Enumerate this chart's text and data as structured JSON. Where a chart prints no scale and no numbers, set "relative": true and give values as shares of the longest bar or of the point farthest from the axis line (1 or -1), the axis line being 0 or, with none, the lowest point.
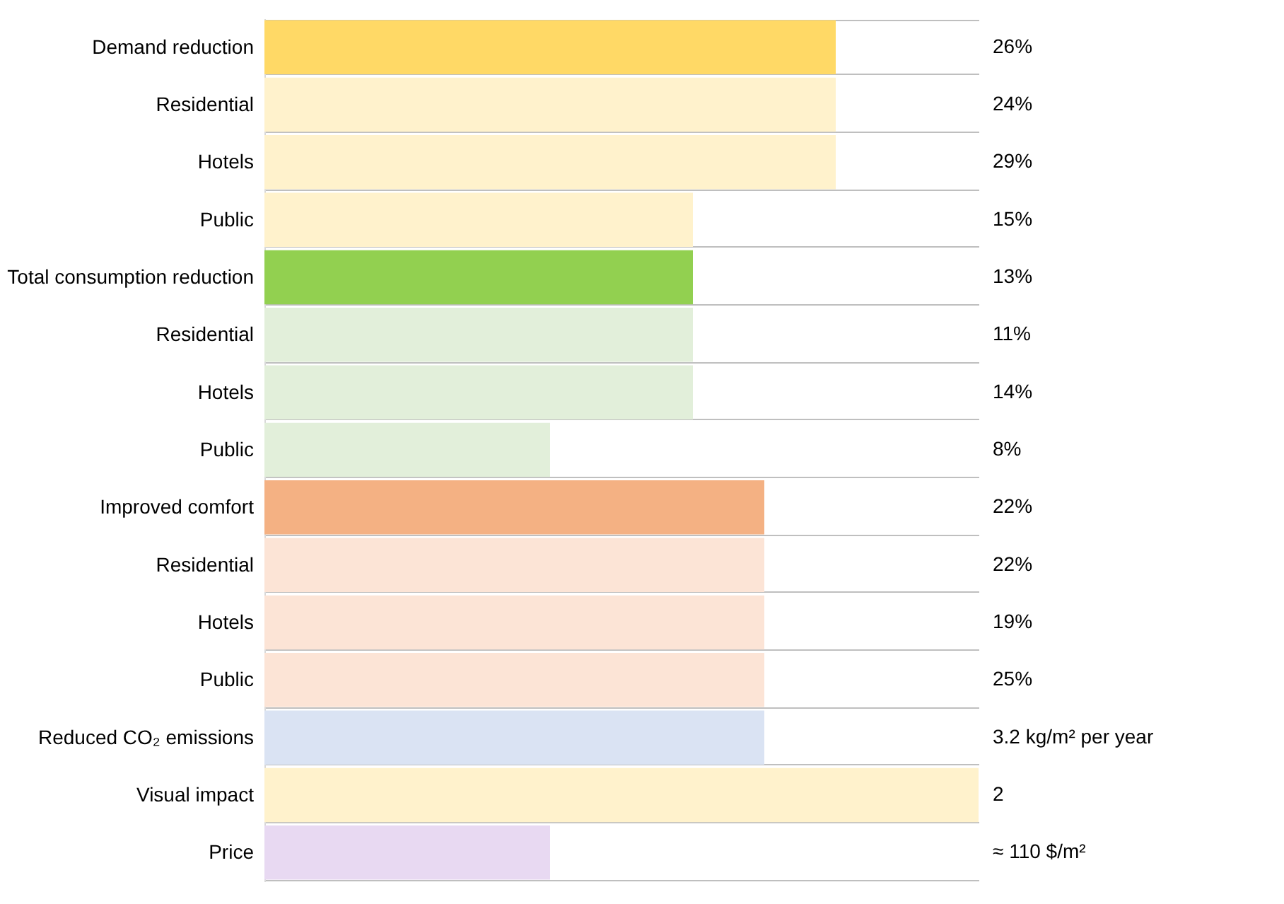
{
  "chart_data": {
    "type": "bar",
    "orientation": "horizontal",
    "relative": true,
    "grid": "y",
    "categories": [
      "Demand reduction",
      "Residential",
      "Hotels",
      "Public",
      "Total consumption reduction",
      "Residential",
      "Hotels",
      "Public",
      "Improved comfort",
      "Residential",
      "Hotels",
      "Public",
      "Reduced CO₂ emissions",
      "Visual impact",
      "Price"
    ],
    "values": [
      0.8,
      0.8,
      0.8,
      0.6,
      0.6,
      0.6,
      0.6,
      0.4,
      0.7,
      0.7,
      0.7,
      0.7,
      0.7,
      1,
      0.4
    ],
    "colors": [
      "#ffd966",
      "#fff2cc",
      "#fff2cc",
      "#fff2cc",
      "#92d050",
      "#e2efda",
      "#e2efda",
      "#e2efda",
      "#f4b183",
      "#fce4d6",
      "#fce4d6",
      "#fce4d6",
      "#dae3f3",
      "#fff2cc",
      "#e8d9f2"
    ],
    "annotations": [
      "26%",
      "24%",
      "29%",
      "15%",
      "13%",
      "11%",
      "14%",
      "8%",
      "22%",
      "22%",
      "19%",
      "25%",
      "3.2 kg/m² per year",
      "2",
      "≈ 110 $/m²"
    ]
  }
}
